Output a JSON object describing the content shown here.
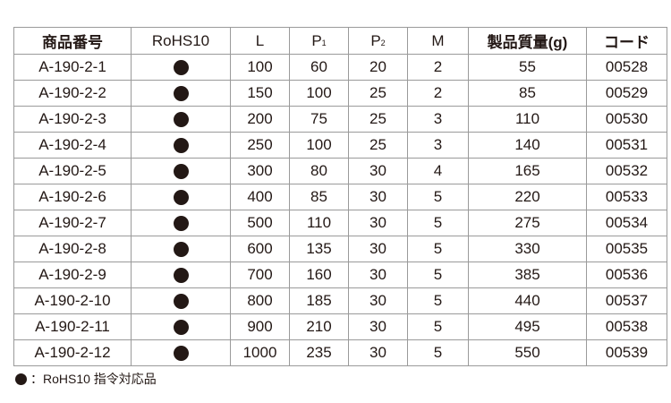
{
  "columns": [
    {
      "label": "商品番号"
    },
    {
      "label": "RoHS10"
    },
    {
      "label": "L"
    },
    {
      "label": "P",
      "sub": "1"
    },
    {
      "label": "P",
      "sub": "2"
    },
    {
      "label": "M"
    },
    {
      "label": "製品質量(g)"
    },
    {
      "label": "コード"
    }
  ],
  "rows": [
    [
      "A-190-2-1",
      "●",
      "100",
      "60",
      "20",
      "2",
      "55",
      "00528"
    ],
    [
      "A-190-2-2",
      "●",
      "150",
      "100",
      "25",
      "2",
      "85",
      "00529"
    ],
    [
      "A-190-2-3",
      "●",
      "200",
      "75",
      "25",
      "3",
      "110",
      "00530"
    ],
    [
      "A-190-2-4",
      "●",
      "250",
      "100",
      "25",
      "3",
      "140",
      "00531"
    ],
    [
      "A-190-2-5",
      "●",
      "300",
      "80",
      "30",
      "4",
      "165",
      "00532"
    ],
    [
      "A-190-2-6",
      "●",
      "400",
      "85",
      "30",
      "5",
      "220",
      "00533"
    ],
    [
      "A-190-2-7",
      "●",
      "500",
      "110",
      "30",
      "5",
      "275",
      "00534"
    ],
    [
      "A-190-2-8",
      "●",
      "600",
      "135",
      "30",
      "5",
      "330",
      "00535"
    ],
    [
      "A-190-2-9",
      "●",
      "700",
      "160",
      "30",
      "5",
      "385",
      "00536"
    ],
    [
      "A-190-2-10",
      "●",
      "800",
      "185",
      "30",
      "5",
      "440",
      "00537"
    ],
    [
      "A-190-2-11",
      "●",
      "900",
      "210",
      "30",
      "5",
      "495",
      "00538"
    ],
    [
      "A-190-2-12",
      "●",
      "1000",
      "235",
      "30",
      "5",
      "550",
      "00539"
    ]
  ],
  "note": {
    "icon": "filled-circle",
    "text": "：RoHS10 指令対応品"
  }
}
